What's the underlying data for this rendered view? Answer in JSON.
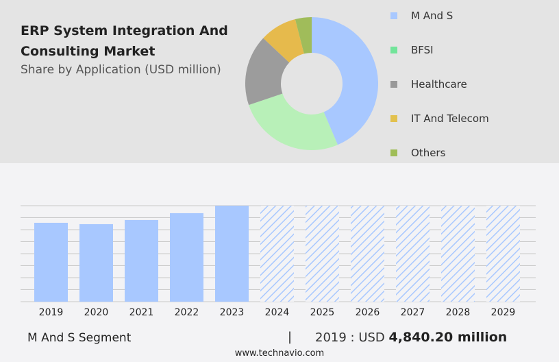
{
  "header": {
    "title": "ERP System Integration And Consulting Market",
    "subtitle": "Share by Application (USD million)"
  },
  "chart_data": [
    {
      "type": "pie",
      "donut": true,
      "slices": [
        {
          "name": "M And S",
          "value": 43.6,
          "color": "#a8c8ff"
        },
        {
          "name": "BFSI",
          "value": 26.2,
          "color": "#b8f0b8"
        },
        {
          "name": "Healthcare",
          "value": 17.2,
          "color": "#9c9c9c"
        },
        {
          "name": "IT And Telecom",
          "value": 9.0,
          "color": "#e6ba4c"
        },
        {
          "name": "Others",
          "value": 4.0,
          "color": "#a0bc5a"
        }
      ],
      "legend": [
        {
          "name": "M And S",
          "color": "#a8c8ff"
        },
        {
          "name": "BFSI",
          "color": "#72e49a"
        },
        {
          "name": "Healthcare",
          "color": "#999999"
        },
        {
          "name": "IT And Telecom",
          "color": "#e2c14e"
        },
        {
          "name": "Others",
          "color": "#9fbd57"
        }
      ],
      "legend_placement": "right"
    },
    {
      "type": "bar",
      "categories": [
        "2019",
        "2020",
        "2021",
        "2022",
        "2023",
        "2024",
        "2025",
        "2026",
        "2027",
        "2028",
        "2029"
      ],
      "values": [
        4840.2,
        4756,
        5009,
        5430,
        5890,
        null,
        null,
        null,
        null,
        null,
        null
      ],
      "forecast": [
        "2024",
        "2025",
        "2026",
        "2027",
        "2028",
        "2029"
      ],
      "color": "#a8c8ff",
      "grid": true,
      "ylim": [
        0,
        5890
      ]
    }
  ],
  "footer": {
    "segment": "M And S Segment",
    "separator": "|",
    "year_label": "2019 : USD",
    "value": "4,840.20 million",
    "site": "www.technavio.com"
  }
}
